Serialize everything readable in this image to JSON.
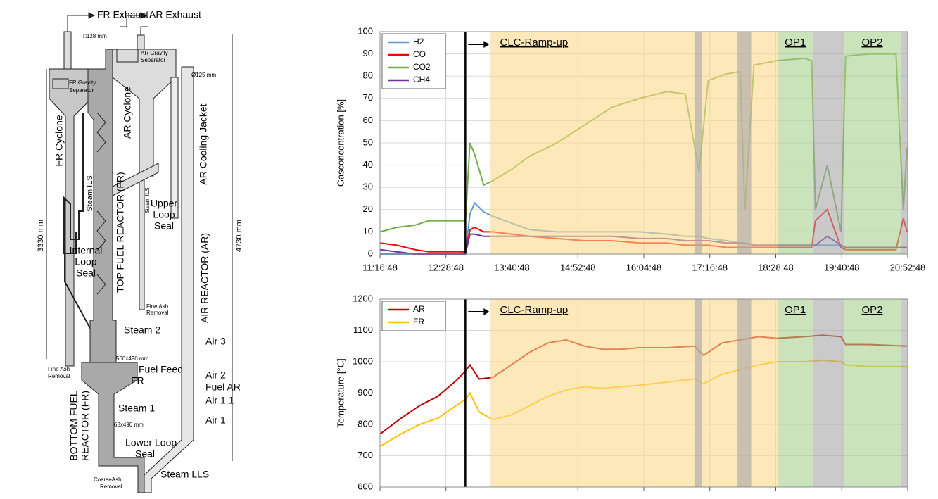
{
  "diagram": {
    "labels": [
      "FR Exhaust",
      "AR Exhaust",
      "□128 mm",
      "AR Gravity",
      "Separator",
      "Ø125 mm",
      "FR Gravity",
      "Separator",
      "FR Cyclone",
      "AR Cyclone",
      "AR Cooling Jacket",
      "Steam ILS",
      "Steam ILS",
      "Upper",
      "Loop",
      "Seal",
      "Internal",
      "Loop",
      "Seal",
      "3330 mm",
      "4730 mm",
      "TOP FUEL REACTOR (FR)",
      "AIR REACTOR (AR)",
      "Fine Ash",
      "Removal",
      "Steam 2",
      "560x490 mm",
      "Fuel Feed",
      "FR",
      "Air 3",
      "Air 2",
      "Fuel AR",
      "Air 1.1",
      "Air 1",
      "Fine Ash",
      "Removal",
      "Steam 1",
      "68x490 mm",
      "Lower Loop",
      "Seal",
      "BOTTOM FUEL",
      "REACTOR (FR)",
      "Steam LLS",
      "CoarseAsh",
      "Removal"
    ]
  },
  "chart_data": [
    {
      "type": "line",
      "ylabel": "Gasconcentration [%]",
      "xlim": [
        "11:16:48",
        "20:52:48"
      ],
      "xticks": [
        "11:16:48",
        "12:28:48",
        "13:40:48",
        "14:52:48",
        "16:04:48",
        "17:16:48",
        "18:28:48",
        "19:40:48",
        "20:52:48"
      ],
      "xtick_labels": true,
      "ylim": [
        0,
        100
      ],
      "yticks": [
        0,
        10,
        20,
        30,
        40,
        50,
        60,
        70,
        80,
        90,
        100
      ],
      "grid": true,
      "legend": "upper left",
      "x": [
        "11:17:00",
        "11:35:00",
        "11:55:00",
        "12:10:00",
        "12:25:00",
        "12:40:00",
        "12:50:00",
        "12:55:00",
        "13:00:00",
        "13:10:00",
        "13:20:00",
        "13:40:00",
        "14:00:00",
        "14:30:00",
        "15:00:00",
        "15:30:00",
        "16:00:00",
        "16:30:00",
        "16:50:00",
        "17:05:00",
        "17:15:00",
        "17:35:00",
        "17:50:00",
        "17:55:00",
        "18:05:00",
        "18:30:00",
        "19:00:00",
        "19:08:00",
        "19:12:00",
        "19:25:00",
        "19:40:00",
        "19:45:00",
        "20:10:00",
        "20:40:00",
        "20:48:00",
        "20:52:00"
      ],
      "series": [
        {
          "name": "H2",
          "color": "#5b9bd5",
          "values": [
            0,
            0,
            0,
            0,
            0,
            0,
            1,
            18,
            23,
            19,
            17,
            14,
            11,
            10,
            10,
            10,
            10,
            9,
            8,
            8,
            7,
            6,
            5,
            5,
            4,
            4,
            4,
            4,
            4,
            4,
            4,
            3,
            3,
            3,
            3,
            3
          ]
        },
        {
          "name": "CO",
          "color": "#ff0000",
          "values": [
            5,
            4,
            2,
            1,
            1,
            1,
            1,
            11,
            12,
            10,
            10,
            9,
            8,
            7,
            6,
            6,
            5,
            5,
            4,
            4,
            4,
            3,
            3,
            3,
            3,
            3,
            3,
            3,
            15,
            20,
            3,
            2,
            2,
            2,
            16,
            10
          ]
        },
        {
          "name": "CO2",
          "color": "#70ad47",
          "values": [
            10,
            12,
            13,
            15,
            15,
            15,
            15,
            50,
            45,
            31,
            33,
            38,
            44,
            50,
            58,
            66,
            70,
            73,
            72,
            37,
            78,
            81,
            82,
            20,
            85,
            87,
            88,
            87,
            20,
            40,
            10,
            89,
            90,
            90,
            20,
            48
          ]
        },
        {
          "name": "CH4",
          "color": "#7030a0",
          "values": [
            2,
            1,
            0,
            0,
            0,
            0,
            0,
            9,
            9,
            8,
            8,
            8,
            8,
            8,
            8,
            8,
            7,
            7,
            6,
            6,
            6,
            5,
            5,
            5,
            4,
            4,
            4,
            4,
            4,
            8,
            4,
            3,
            3,
            3,
            3,
            3
          ]
        }
      ],
      "marker": "12:50:00",
      "regions": [
        {
          "start": "13:17:00",
          "end": "18:31:00",
          "color": "#fcd88a",
          "label": "CLC-Ramp-up"
        },
        {
          "start": "17:00:00",
          "end": "17:08:00",
          "color": "#a6a6a6"
        },
        {
          "start": "17:47:00",
          "end": "18:02:00",
          "color": "#a6a6a6"
        },
        {
          "start": "18:31:00",
          "end": "19:09:00",
          "color": "#a9d08e",
          "label": "OP1"
        },
        {
          "start": "19:09:00",
          "end": "19:43:00",
          "color": "#a6a6a6"
        },
        {
          "start": "19:43:00",
          "end": "20:45:00",
          "color": "#a9d08e",
          "label": "OP2"
        },
        {
          "start": "20:45:00",
          "end": "20:52:48",
          "color": "#a6a6a6"
        }
      ]
    },
    {
      "type": "line",
      "ylabel": "Temperature [°C]",
      "xlim": [
        "11:16:48",
        "20:52:48"
      ],
      "xticks": [
        "11:16:48",
        "12:28:48",
        "13:40:48",
        "14:52:48",
        "16:04:48",
        "17:16:48",
        "18:28:48",
        "19:40:48",
        "20:52:48"
      ],
      "xtick_labels": false,
      "ylim": [
        600,
        1200
      ],
      "yticks": [
        600,
        700,
        800,
        900,
        1000,
        1100,
        1200
      ],
      "grid": true,
      "legend": "upper left",
      "x": [
        "11:17:00",
        "11:40:00",
        "12:00:00",
        "12:20:00",
        "12:40:00",
        "12:50:00",
        "12:55:00",
        "13:05:00",
        "13:20:00",
        "13:40:00",
        "14:00:00",
        "14:20:00",
        "14:40:00",
        "15:00:00",
        "15:20:00",
        "15:40:00",
        "16:00:00",
        "16:30:00",
        "17:00:00",
        "17:10:00",
        "17:30:00",
        "17:50:00",
        "18:10:00",
        "18:30:00",
        "19:00:00",
        "19:20:00",
        "19:40:00",
        "19:45:00",
        "20:10:00",
        "20:52:00"
      ],
      "series": [
        {
          "name": "AR",
          "color": "#c00000",
          "values": [
            770,
            820,
            860,
            890,
            940,
            970,
            990,
            945,
            950,
            990,
            1030,
            1060,
            1070,
            1050,
            1040,
            1040,
            1045,
            1045,
            1050,
            1020,
            1060,
            1070,
            1080,
            1075,
            1080,
            1085,
            1080,
            1055,
            1055,
            1050
          ]
        },
        {
          "name": "FR",
          "color": "#ffc000",
          "values": [
            730,
            770,
            800,
            820,
            860,
            880,
            900,
            840,
            815,
            830,
            860,
            890,
            910,
            920,
            915,
            920,
            925,
            935,
            945,
            930,
            960,
            975,
            990,
            1000,
            1000,
            1005,
            1000,
            990,
            985,
            985
          ]
        }
      ],
      "marker": "12:50:00",
      "regions": [
        {
          "start": "13:17:00",
          "end": "18:31:00",
          "color": "#fcd88a",
          "label": "CLC-Ramp-up"
        },
        {
          "start": "17:00:00",
          "end": "17:08:00",
          "color": "#a6a6a6"
        },
        {
          "start": "17:47:00",
          "end": "18:02:00",
          "color": "#a6a6a6"
        },
        {
          "start": "18:31:00",
          "end": "19:09:00",
          "color": "#a9d08e",
          "label": "OP1"
        },
        {
          "start": "19:09:00",
          "end": "19:43:00",
          "color": "#a6a6a6"
        },
        {
          "start": "19:43:00",
          "end": "20:45:00",
          "color": "#a9d08e",
          "label": "OP2"
        },
        {
          "start": "20:45:00",
          "end": "20:52:48",
          "color": "#a6a6a6"
        }
      ]
    }
  ]
}
